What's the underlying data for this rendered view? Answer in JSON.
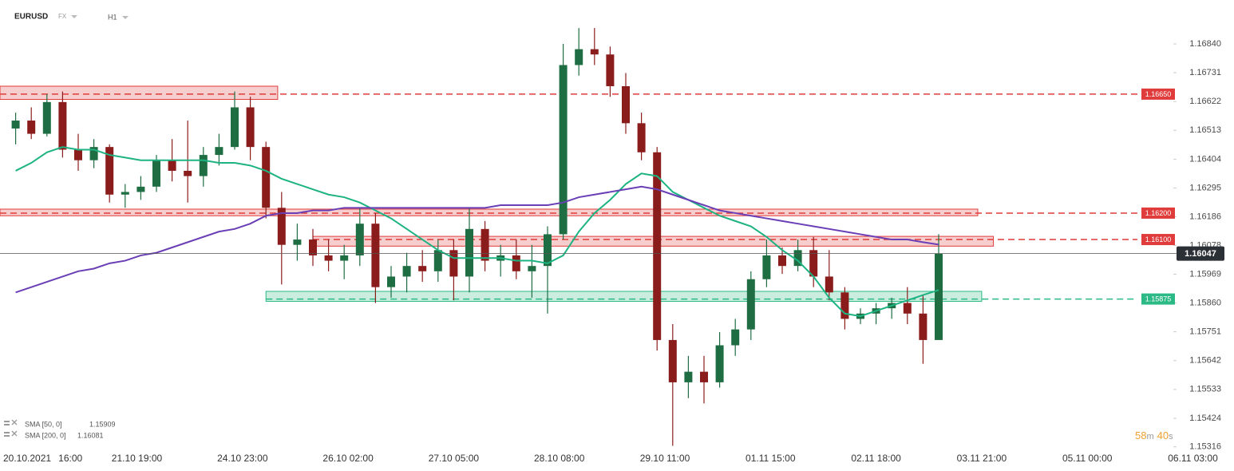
{
  "symbol": "EURUSD",
  "market": "FX",
  "timeframe": "H1",
  "countdown": {
    "minutes": 58,
    "minutes_unit": "m",
    "seconds": 40,
    "seconds_unit": "s"
  },
  "chart_data": {
    "type": "candlestick",
    "up_color": "#1f6e43",
    "down_color": "#8a1c1c",
    "xlim": [
      0,
      300
    ],
    "xticks": [
      {
        "value": 1,
        "label": "20.10.2021"
      },
      {
        "value": 18,
        "label": "16:00"
      },
      {
        "value": 35,
        "label": "21.10 19:00"
      },
      {
        "value": 62,
        "label": "24.10 23:00"
      },
      {
        "value": 89,
        "label": "26.10 02:00"
      },
      {
        "value": 116,
        "label": "27.10 05:00"
      },
      {
        "value": 143,
        "label": "28.10 08:00"
      },
      {
        "value": 170,
        "label": "29.10 11:00"
      },
      {
        "value": 197,
        "label": "01.11 15:00"
      },
      {
        "value": 224,
        "label": "02.11 18:00"
      },
      {
        "value": 251,
        "label": "03.11 21:00"
      },
      {
        "value": 278,
        "label": "05.11 00:00"
      },
      {
        "value": 305,
        "label": "06.11 03:00"
      }
    ],
    "ylim": [
      1.153,
      1.17
    ],
    "yticks": [
      {
        "value": 1.1684,
        "label": "1.16840"
      },
      1.16731,
      1.16622,
      1.16513,
      1.16404,
      1.16295,
      1.16186,
      1.16078,
      1.15969,
      {
        "value": 1.1586,
        "label": "1.15860"
      },
      1.15751,
      1.15642,
      1.15533,
      1.15424,
      1.15316
    ],
    "x": [
      4,
      8,
      12,
      16,
      20,
      24,
      28,
      32,
      36,
      40,
      44,
      48,
      52,
      56,
      60,
      64,
      68,
      72,
      76,
      80,
      84,
      88,
      92,
      96,
      100,
      104,
      108,
      112,
      116,
      120,
      124,
      128,
      132,
      136,
      140,
      144,
      148,
      152,
      156,
      160,
      164,
      168,
      172,
      176,
      180,
      184,
      188,
      192,
      196,
      200,
      204,
      208,
      212,
      216,
      220,
      224,
      228,
      232,
      236,
      240
    ],
    "open": [
      1.1652,
      1.1655,
      1.165,
      1.1662,
      1.1644,
      1.164,
      1.1645,
      1.1627,
      1.1628,
      1.163,
      1.164,
      1.1636,
      1.1634,
      1.1642,
      1.1645,
      1.166,
      1.1645,
      1.1622,
      1.1608,
      1.161,
      1.1604,
      1.1602,
      1.1604,
      1.1616,
      1.1592,
      1.1596,
      1.16,
      1.1598,
      1.1606,
      1.1596,
      1.1614,
      1.1602,
      1.1604,
      1.1598,
      1.16,
      1.1612,
      1.1676,
      1.1682,
      1.168,
      1.1668,
      1.1654,
      1.1643,
      1.1572,
      1.1556,
      1.156,
      1.1556,
      1.157,
      1.1576,
      1.1595,
      1.1604,
      1.16,
      1.1606,
      1.1596,
      1.159,
      1.158,
      1.1582,
      1.1584,
      1.1586,
      1.1582,
      1.1572
    ],
    "high": [
      1.1658,
      1.166,
      1.1665,
      1.1666,
      1.165,
      1.1648,
      1.1646,
      1.1631,
      1.1634,
      1.1642,
      1.1648,
      1.1655,
      1.1645,
      1.165,
      1.1666,
      1.1664,
      1.1647,
      1.1628,
      1.1616,
      1.1614,
      1.161,
      1.1608,
      1.1622,
      1.162,
      1.16,
      1.1605,
      1.1606,
      1.161,
      1.161,
      1.1622,
      1.1617,
      1.1608,
      1.161,
      1.1608,
      1.1615,
      1.1684,
      1.169,
      1.169,
      1.1683,
      1.1673,
      1.1658,
      1.1645,
      1.1578,
      1.1566,
      1.1566,
      1.1575,
      1.158,
      1.1598,
      1.161,
      1.1607,
      1.161,
      1.1611,
      1.1606,
      1.1592,
      1.1584,
      1.1586,
      1.1588,
      1.1592,
      1.1589,
      1.1612
    ],
    "low": [
      1.1646,
      1.1648,
      1.1649,
      1.1641,
      1.1636,
      1.1637,
      1.1624,
      1.1622,
      1.1625,
      1.1628,
      1.1632,
      1.1624,
      1.163,
      1.1638,
      1.1644,
      1.164,
      1.1618,
      1.1593,
      1.1602,
      1.16,
      1.1598,
      1.1595,
      1.16,
      1.1586,
      1.1588,
      1.159,
      1.1594,
      1.1594,
      1.1587,
      1.159,
      1.1598,
      1.1596,
      1.1595,
      1.1588,
      1.1582,
      1.161,
      1.1672,
      1.1676,
      1.1664,
      1.165,
      1.164,
      1.1568,
      1.1532,
      1.155,
      1.1548,
      1.1554,
      1.1566,
      1.1572,
      1.1592,
      1.1597,
      1.1598,
      1.1592,
      1.1587,
      1.1576,
      1.1578,
      1.1578,
      1.158,
      1.1578,
      1.1563,
      1.1572
    ],
    "close": [
      1.1655,
      1.165,
      1.1662,
      1.1644,
      1.164,
      1.1645,
      1.1627,
      1.1628,
      1.163,
      1.164,
      1.1636,
      1.1634,
      1.1642,
      1.1645,
      1.166,
      1.1645,
      1.1622,
      1.1608,
      1.161,
      1.1604,
      1.1602,
      1.1604,
      1.1616,
      1.1592,
      1.1596,
      1.16,
      1.1598,
      1.1606,
      1.1596,
      1.1614,
      1.1602,
      1.1604,
      1.1598,
      1.16,
      1.1612,
      1.1676,
      1.1682,
      1.168,
      1.1668,
      1.1654,
      1.1643,
      1.1572,
      1.1556,
      1.156,
      1.1556,
      1.157,
      1.1576,
      1.1595,
      1.1604,
      1.16,
      1.1606,
      1.1596,
      1.159,
      1.158,
      1.1582,
      1.1584,
      1.1586,
      1.1582,
      1.1572,
      1.16047
    ],
    "series": [
      {
        "name": "SMA [50, 0]",
        "color": "#1db383",
        "values": [
          1.1636,
          1.1639,
          1.1643,
          1.1645,
          1.1644,
          1.1644,
          1.1642,
          1.1641,
          1.164,
          1.164,
          1.164,
          1.164,
          1.164,
          1.1639,
          1.1639,
          1.1638,
          1.1636,
          1.1633,
          1.1631,
          1.1629,
          1.1627,
          1.1626,
          1.1624,
          1.1621,
          1.1618,
          1.1614,
          1.161,
          1.1606,
          1.1603,
          1.1603,
          1.1603,
          1.1603,
          1.1602,
          1.1602,
          1.1601,
          1.1604,
          1.1613,
          1.162,
          1.1625,
          1.1631,
          1.1635,
          1.1634,
          1.1628,
          1.1625,
          1.1622,
          1.1619,
          1.1617,
          1.1615,
          1.1611,
          1.1606,
          1.1602,
          1.1596,
          1.1588,
          1.1582,
          1.1581,
          1.1583,
          1.1585,
          1.1587,
          1.1589,
          1.15909
        ]
      },
      {
        "name": "SMA [200, 0]",
        "color": "#6a3fb5",
        "values": [
          1.159,
          1.1592,
          1.1594,
          1.1596,
          1.1598,
          1.1599,
          1.1601,
          1.1602,
          1.1604,
          1.1605,
          1.1607,
          1.1609,
          1.1611,
          1.1613,
          1.1614,
          1.1616,
          1.1619,
          1.162,
          1.162,
          1.1621,
          1.1621,
          1.1622,
          1.1622,
          1.1622,
          1.1622,
          1.1622,
          1.1622,
          1.1622,
          1.1622,
          1.1622,
          1.1622,
          1.1623,
          1.1623,
          1.1623,
          1.1623,
          1.1624,
          1.1626,
          1.1627,
          1.1628,
          1.1629,
          1.163,
          1.1629,
          1.1627,
          1.1625,
          1.1623,
          1.1621,
          1.162,
          1.1619,
          1.1618,
          1.1617,
          1.1616,
          1.1615,
          1.1614,
          1.1613,
          1.1612,
          1.1611,
          1.161,
          1.161,
          1.1609,
          1.16081
        ]
      }
    ],
    "zones": [
      {
        "level": {
          "value": 1.1665,
          "label": "1.16650"
        },
        "range": [
          1.1668,
          1.1663
        ],
        "x": [
          0,
          71
        ],
        "color": "#e03c3c"
      },
      {
        "level": {
          "value": 1.162,
          "label": "1.16200"
        },
        "range": [
          1.16215,
          1.1619
        ],
        "x": [
          0,
          250
        ],
        "color": "#e03c3c"
      },
      {
        "level": {
          "value": 1.161,
          "label": "1.16100"
        },
        "range": [
          1.16112,
          1.16075
        ],
        "x": [
          80,
          254
        ],
        "color": "#e03c3c"
      },
      {
        "level": 1.15875,
        "range": [
          1.15904,
          1.15866
        ],
        "x": [
          68,
          251
        ],
        "color": "#2bb985"
      }
    ]
  }
}
